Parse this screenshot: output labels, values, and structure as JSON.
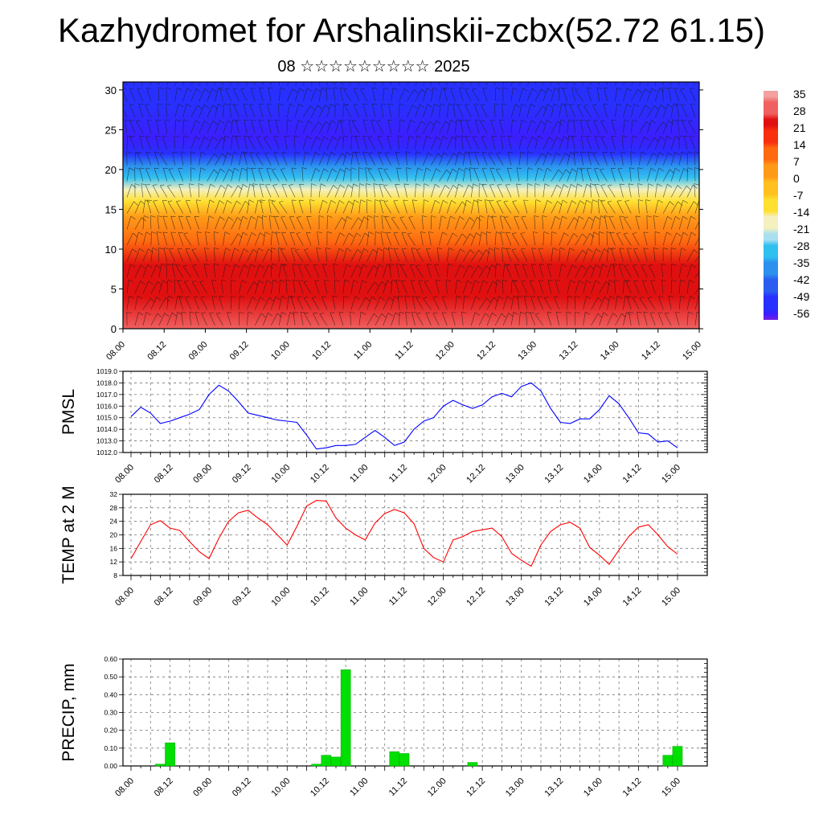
{
  "header": {
    "title": "Kazhydromet for Arshalinskii-zcbx(52.72 61.15)",
    "subtitle": "08 ☆☆☆☆☆☆☆☆☆ 2025"
  },
  "time_labels": [
    "08.00",
    "08.12",
    "09.00",
    "09.12",
    "10.00",
    "10.12",
    "11.00",
    "11.12",
    "12.00",
    "12.12",
    "13.00",
    "13.12",
    "14.00",
    "14.12",
    "15.00"
  ],
  "chart_data": [
    {
      "type": "heatmap",
      "title": "",
      "x_ticks": [
        "08.00",
        "08.12",
        "09.00",
        "09.12",
        "10.00",
        "10.12",
        "11.00",
        "11.12",
        "12.00",
        "12.12",
        "13.00",
        "13.12",
        "14.00",
        "14.12",
        "15.00"
      ],
      "y_ticks": [
        0,
        5,
        10,
        15,
        20,
        25,
        30
      ],
      "ylim": [
        0,
        31
      ],
      "colorbar": {
        "labels": [
          "35",
          "28",
          "21",
          "14",
          "7",
          "0",
          "-7",
          "-14",
          "-21",
          "-28",
          "-35",
          "-42",
          "-49",
          "-56"
        ],
        "range": [
          -60,
          38
        ]
      },
      "profile": {
        "heights": [
          0,
          4,
          8,
          11,
          14,
          16,
          17.5,
          19,
          20.5,
          22,
          24,
          28,
          31
        ],
        "values": [
          30,
          27,
          22,
          14,
          2,
          -7,
          -18,
          -30,
          -40,
          -50,
          -56,
          -54,
          -52
        ]
      },
      "wind_barbs": true
    },
    {
      "type": "line",
      "ylabel": "PMSL",
      "ylim": [
        1012.0,
        1019.0
      ],
      "y_ticks": [
        "1012.0",
        "1013.0",
        "1014.0",
        "1015.0",
        "1016.0",
        "1017.0",
        "1018.0",
        "1019.0"
      ],
      "color": "#0000ff",
      "x": [
        0,
        1,
        2,
        3,
        4,
        5,
        6,
        7,
        8,
        9,
        10,
        11,
        12,
        13,
        14,
        15,
        16,
        17,
        18,
        19,
        20,
        21,
        22,
        23,
        24,
        25,
        26,
        27,
        28,
        29,
        30,
        31,
        32,
        33,
        34,
        35,
        36,
        37,
        38,
        39,
        40,
        41,
        42,
        43,
        44,
        45,
        46,
        47,
        48,
        49,
        50,
        51,
        52,
        53,
        54,
        55,
        56
      ],
      "values": [
        1015.1,
        1015.9,
        1015.4,
        1014.5,
        1014.7,
        1015.0,
        1015.3,
        1015.7,
        1017.0,
        1017.8,
        1017.3,
        1016.4,
        1015.4,
        1015.2,
        1015.0,
        1014.8,
        1014.7,
        1014.6,
        1013.5,
        1012.3,
        1012.4,
        1012.6,
        1012.6,
        1012.7,
        1013.3,
        1013.9,
        1013.3,
        1012.6,
        1012.9,
        1014.0,
        1014.7,
        1015.0,
        1016.0,
        1016.5,
        1016.1,
        1015.8,
        1016.1,
        1016.8,
        1017.1,
        1016.8,
        1017.7,
        1018.0,
        1017.3,
        1015.8,
        1014.6,
        1014.5,
        1014.9,
        1014.9,
        1015.7,
        1016.9,
        1016.2,
        1015.0,
        1013.7,
        1013.6,
        1012.9,
        1013.0,
        1012.4
      ]
    },
    {
      "type": "line",
      "ylabel": "TEMP at 2 M",
      "ylim": [
        8,
        32
      ],
      "y_ticks": [
        "8",
        "12",
        "16",
        "20",
        "24",
        "28",
        "32"
      ],
      "color": "#ff0000",
      "x": [
        0,
        1,
        2,
        3,
        4,
        5,
        6,
        7,
        8,
        9,
        10,
        11,
        12,
        13,
        14,
        15,
        16,
        17,
        18,
        19,
        20,
        21,
        22,
        23,
        24,
        25,
        26,
        27,
        28,
        29,
        30,
        31,
        32,
        33,
        34,
        35,
        36,
        37,
        38,
        39,
        40,
        41,
        42,
        43,
        44,
        45,
        46,
        47,
        48,
        49,
        50,
        51,
        52,
        53,
        54,
        55,
        56
      ],
      "values": [
        13,
        18,
        23,
        24.2,
        22,
        21.3,
        18,
        15,
        13,
        19,
        24,
        26.5,
        27.3,
        25,
        23,
        20,
        17,
        22.5,
        28.5,
        30.2,
        30,
        25,
        22,
        20,
        18.5,
        23.5,
        26.3,
        27.5,
        26.5,
        23.3,
        16,
        13.3,
        12,
        18.5,
        19.5,
        21,
        21.5,
        22,
        19.5,
        14.5,
        12.5,
        10.7,
        17,
        21,
        23,
        23.7,
        22,
        16.3,
        14,
        11.3,
        15.5,
        19.5,
        22.3,
        23,
        20,
        16.5,
        14.3
      ]
    },
    {
      "type": "bar",
      "ylabel": "PRECIP, mm",
      "ylim": [
        0,
        0.6
      ],
      "y_ticks": [
        "0.00",
        "0.10",
        "0.20",
        "0.30",
        "0.40",
        "0.50",
        "0.60"
      ],
      "color": "#00e000",
      "x": [
        0,
        1,
        2,
        3,
        4,
        5,
        6,
        7,
        8,
        9,
        10,
        11,
        12,
        13,
        14,
        15,
        16,
        17,
        18,
        19,
        20,
        21,
        22,
        23,
        24,
        25,
        26,
        27,
        28,
        29,
        30,
        31,
        32,
        33,
        34,
        35,
        36,
        37,
        38,
        39,
        40,
        41,
        42,
        43,
        44,
        45,
        46,
        47,
        48,
        49,
        50,
        51,
        52,
        53,
        54,
        55,
        56
      ],
      "values": [
        0,
        0,
        0,
        0.01,
        0.13,
        0,
        0,
        0,
        0,
        0,
        0,
        0,
        0,
        0,
        0,
        0,
        0,
        0,
        0,
        0.01,
        0.06,
        0.05,
        0.54,
        0,
        0,
        0,
        0,
        0.08,
        0.07,
        0,
        0,
        0,
        0,
        0,
        0,
        0.02,
        0,
        0,
        0,
        0,
        0,
        0,
        0,
        0,
        0,
        0,
        0,
        0,
        0,
        0,
        0,
        0,
        0,
        0,
        0,
        0.06,
        0.11
      ]
    }
  ]
}
